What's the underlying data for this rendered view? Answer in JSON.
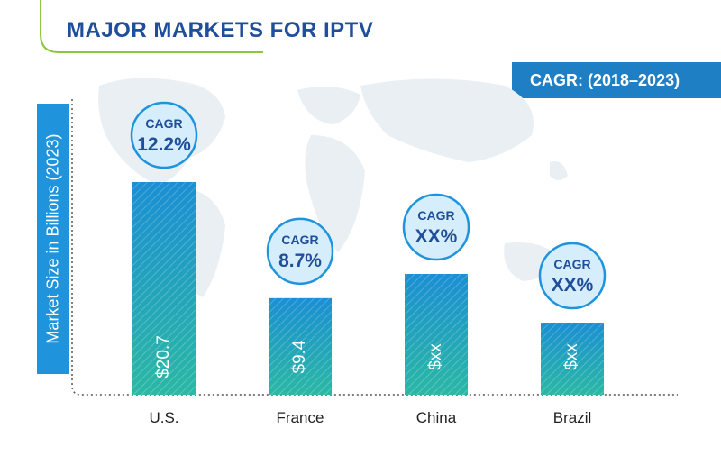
{
  "header": {
    "title": "MAJOR MARKETS FOR IPTV"
  },
  "banner": {
    "text": "CAGR: (2018–2023)"
  },
  "chart_data": {
    "type": "bar",
    "title": "MAJOR MARKETS FOR IPTV",
    "ylabel": "Market Size in Billions (2023)",
    "xlabel": "",
    "categories": [
      "U.S.",
      "France",
      "China",
      "Brazil"
    ],
    "values": [
      20.7,
      9.4,
      null,
      null
    ],
    "value_labels": [
      "$20.7",
      "$9.4",
      "$xx",
      "$xx"
    ],
    "cagr_title": "CAGR",
    "cagr_labels": [
      "12.2%",
      "8.7%",
      "XX%",
      "XX%"
    ],
    "colors": {
      "bar_top": "#1b8fd3",
      "bar_bottom": "#2bb8a4",
      "circle_fill": "#d6eefb",
      "circle_stroke": "#1f94dd",
      "text": "#1f4e9a"
    }
  }
}
